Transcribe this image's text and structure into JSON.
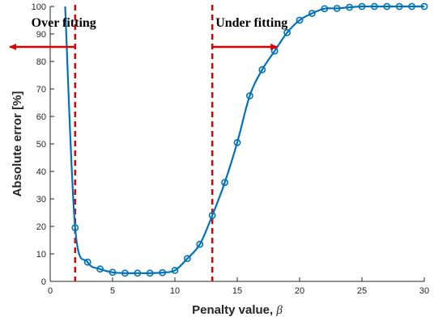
{
  "chart_data": {
    "type": "line",
    "xlabel": "Penalty value, ",
    "xlabel_symbol": "β",
    "ylabel": "Absolute error [%]",
    "xlim": [
      0,
      30
    ],
    "ylim": [
      0,
      100
    ],
    "xticks": [
      0,
      5,
      10,
      15,
      20,
      25,
      30
    ],
    "yticks": [
      0,
      10,
      20,
      30,
      40,
      50,
      60,
      70,
      80,
      90,
      100
    ],
    "grid": false,
    "legend": "none",
    "series": [
      {
        "color": "#0072BD",
        "marker": "circle",
        "curve_start": {
          "x": 1.2,
          "y": 100
        },
        "x": [
          2,
          3,
          4,
          5,
          6,
          7,
          8,
          9,
          10,
          11,
          12,
          13,
          14,
          15,
          16,
          17,
          18,
          19,
          20,
          21,
          22,
          23,
          24,
          25,
          26,
          27,
          28,
          29,
          30
        ],
        "y": [
          19.5,
          7,
          4.5,
          3.3,
          3,
          3,
          3,
          3.2,
          4,
          8.3,
          13.5,
          24,
          36,
          50.5,
          67.5,
          77,
          83.8,
          90.5,
          95,
          97.5,
          99.2,
          99.3,
          99.7,
          100,
          100,
          100,
          100,
          100,
          100
        ]
      }
    ],
    "annotations": [
      {
        "text": "Over fitting",
        "arrow_direction": "left",
        "at_x": 2
      },
      {
        "text": "Under fitting",
        "arrow_direction": "right",
        "at_x": 13
      }
    ],
    "vlines": [
      {
        "x": 2,
        "color": "#E00000",
        "style": "dashed"
      },
      {
        "x": 13,
        "color": "#E00000",
        "style": "dashed"
      }
    ]
  }
}
